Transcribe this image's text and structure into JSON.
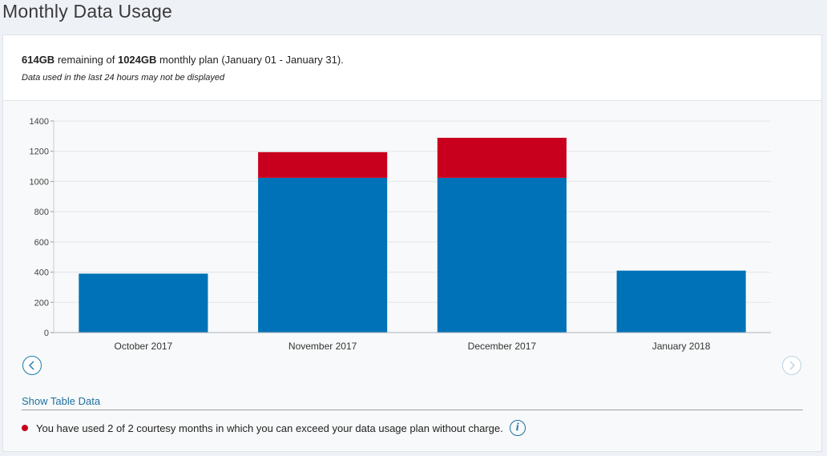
{
  "page_title": "Monthly Data Usage",
  "summary": {
    "remaining": "614GB",
    "text_middle": " remaining of ",
    "plan": "1024GB",
    "text_end": " monthly plan (January 01 - January 31).",
    "note": "Data used in the last 24 hours may not be displayed"
  },
  "nav": {
    "prev_icon": "chevron-left-icon",
    "next_icon": "chevron-right-icon"
  },
  "show_table_label": "Show Table Data",
  "courtesy_text": "You have used 2 of 2 courtesy months in which you can exceed your data usage plan without charge.",
  "info_glyph": "i",
  "colors": {
    "within_plan": "#0072b8",
    "overage": "#c8001e"
  },
  "chart_data": {
    "type": "bar",
    "stacked": true,
    "categories": [
      "October 2017",
      "November 2017",
      "December 2017",
      "January 2018"
    ],
    "series": [
      {
        "values": [
          390,
          1024,
          1024,
          410
        ],
        "color": "#0072b8"
      },
      {
        "values": [
          0,
          170,
          265,
          0
        ],
        "color": "#c8001e"
      }
    ],
    "ylim": [
      0,
      1400
    ],
    "yticks": [
      0,
      200,
      400,
      600,
      800,
      1000,
      1200,
      1400
    ],
    "grid": true
  }
}
